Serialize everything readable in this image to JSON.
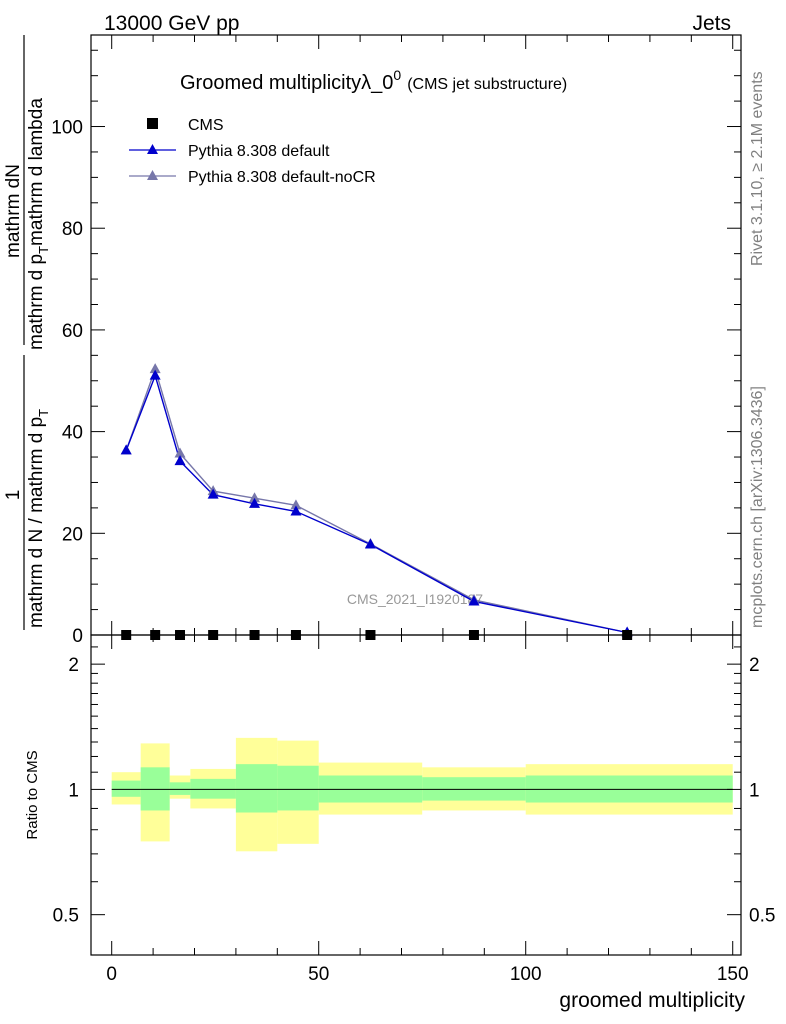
{
  "header": {
    "left": "13000 GeV pp",
    "right": "Jets"
  },
  "side_labels": {
    "rivet": "Rivet 3.1.10, ≥ 2.1M events",
    "mcplots": "mcplots.cern.ch [arXiv:1306.3436]"
  },
  "chart_data": [
    {
      "type": "line",
      "title": "Groomed multiplicity",
      "title_lambda": "λ_0",
      "title_sup": "0",
      "subtitle": "(CMS jet substructure)",
      "watermark": "CMS_2021_I1920187",
      "xlim": [
        -5,
        152
      ],
      "ylim": [
        0,
        118
      ],
      "ylabel_parts": {
        "num_one": "1",
        "num_rest": "mathrm dN",
        "den_one": "mathrm d N / mathrm d p",
        "den_one_sub": "T",
        "den_rest": "mathrm d p",
        "den_rest_sub": "T",
        "den_tail": "mathrm d lambda",
        "den_two": "mathrm d p",
        "den_two_sub": "T",
        "den_two_tail": "mathrm d lambda"
      },
      "yticks": [
        0,
        20,
        40,
        60,
        80,
        100
      ],
      "ytick_labels": [
        "0",
        "20",
        "40",
        "60",
        "80",
        "100"
      ],
      "grid": false,
      "legend_position": "top-left",
      "series": [
        {
          "name": "CMS",
          "color": "#000000",
          "marker": "square",
          "x": [
            3.5,
            10.5,
            16.5,
            24.5,
            34.5,
            44.5,
            62.5,
            87.5,
            124.5
          ],
          "y": [
            0,
            0,
            0,
            0,
            0,
            0,
            0,
            0,
            0
          ]
        },
        {
          "name": "Pythia 8.308 default",
          "color": "#0000cc",
          "marker": "triangle",
          "x": [
            3.5,
            10.5,
            16.5,
            24.5,
            34.5,
            44.5,
            62.5,
            87.5,
            124.5
          ],
          "y": [
            36.3,
            51.0,
            34.2,
            27.6,
            25.8,
            24.3,
            17.8,
            6.6,
            0.5
          ]
        },
        {
          "name": "Pythia 8.308 default-noCR",
          "color": "#7777aa",
          "marker": "triangle",
          "x": [
            3.5,
            10.5,
            16.5,
            24.5,
            34.5,
            44.5,
            62.5,
            87.5,
            124.5
          ],
          "y": [
            36.3,
            52.3,
            35.7,
            28.3,
            26.9,
            25.5,
            17.9,
            6.9,
            0.5
          ]
        }
      ]
    },
    {
      "type": "area",
      "ylabel": "Ratio to CMS",
      "xlabel": "groomed multiplicity",
      "xlim": [
        -5,
        152
      ],
      "ylim": [
        0.4,
        2.35
      ],
      "yscale": "log",
      "xticks": [
        0,
        50,
        100,
        150
      ],
      "xtick_labels": [
        "0",
        "50",
        "100",
        "150"
      ],
      "yticks": [
        0.5,
        1,
        2
      ],
      "ytick_labels": [
        "0.5",
        "1",
        "2"
      ],
      "reference_line": 1,
      "bands": {
        "inner_color": "#99ff99",
        "outer_color": "#ffff99",
        "bins": [
          {
            "lo": 0,
            "hi": 7,
            "inner": [
              0.96,
              1.05
            ],
            "outer": [
              0.92,
              1.1
            ]
          },
          {
            "lo": 7,
            "hi": 14,
            "inner": [
              0.89,
              1.13
            ],
            "outer": [
              0.75,
              1.29
            ]
          },
          {
            "lo": 14,
            "hi": 19,
            "inner": [
              0.97,
              1.04
            ],
            "outer": [
              0.95,
              1.08
            ]
          },
          {
            "lo": 19,
            "hi": 30,
            "inner": [
              0.95,
              1.06
            ],
            "outer": [
              0.9,
              1.12
            ]
          },
          {
            "lo": 30,
            "hi": 40,
            "inner": [
              0.88,
              1.15
            ],
            "outer": [
              0.71,
              1.33
            ]
          },
          {
            "lo": 40,
            "hi": 50,
            "inner": [
              0.89,
              1.14
            ],
            "outer": [
              0.74,
              1.31
            ]
          },
          {
            "lo": 50,
            "hi": 75,
            "inner": [
              0.93,
              1.08
            ],
            "outer": [
              0.87,
              1.16
            ]
          },
          {
            "lo": 75,
            "hi": 100,
            "inner": [
              0.94,
              1.07
            ],
            "outer": [
              0.89,
              1.13
            ]
          },
          {
            "lo": 100,
            "hi": 150,
            "inner": [
              0.93,
              1.08
            ],
            "outer": [
              0.87,
              1.15
            ]
          }
        ]
      }
    }
  ]
}
